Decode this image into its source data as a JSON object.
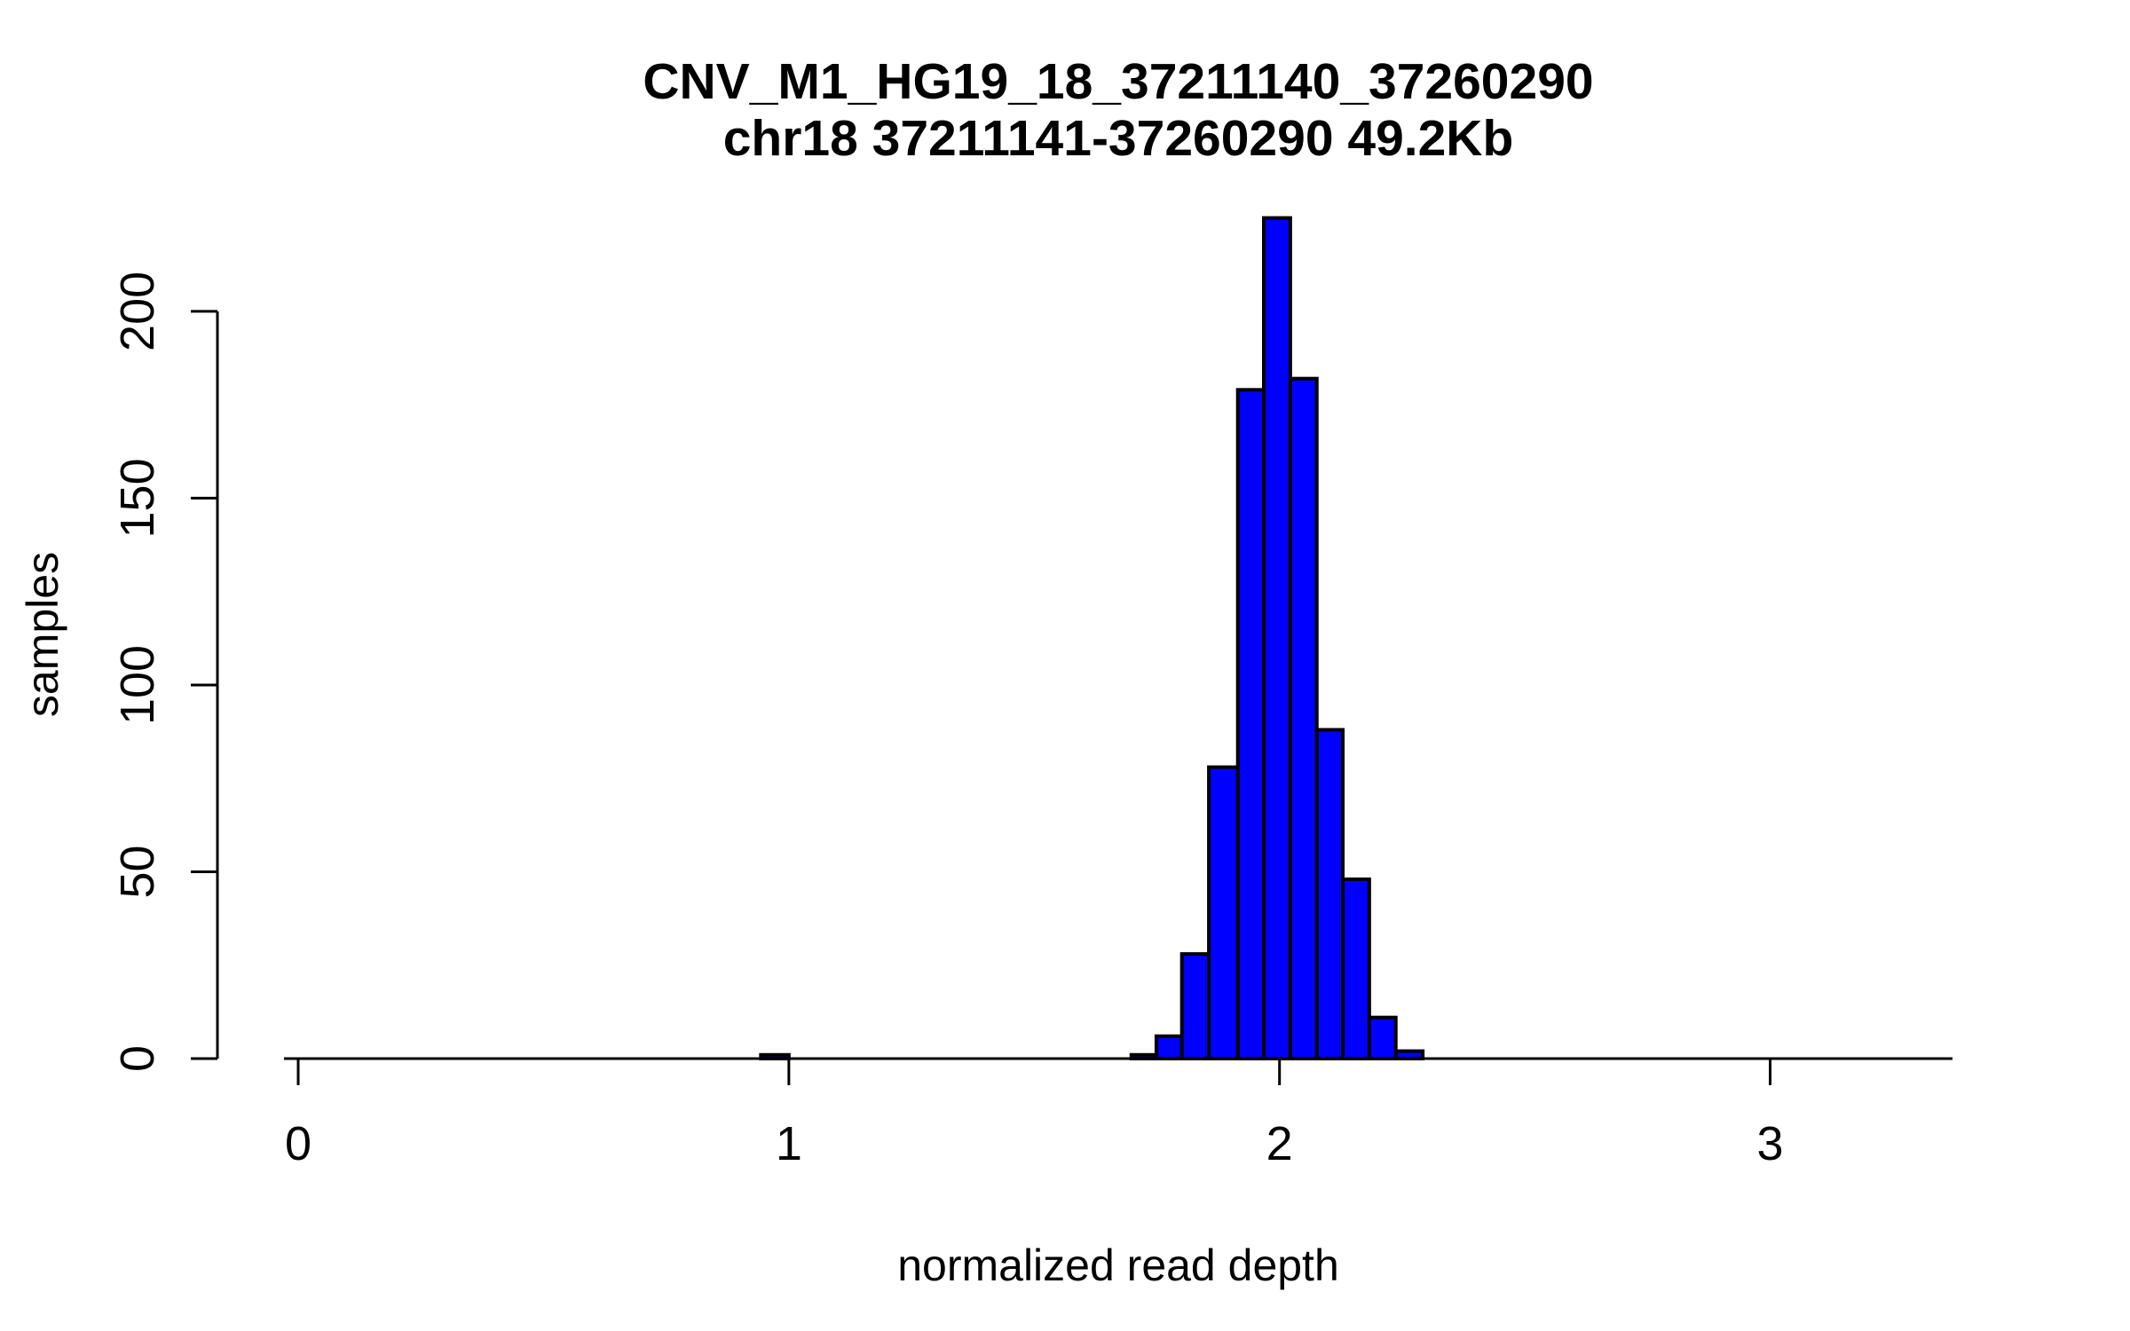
{
  "figure": {
    "title_line1": "CNV_M1_HG19_18_37211140_37260290",
    "title_line2": "chr18 37211141-37260290 49.2Kb"
  },
  "axes": {
    "x_label": "normalized read depth",
    "y_label": "samples",
    "x_tick_labels": [
      "0",
      "1",
      "2",
      "3"
    ],
    "x_tick_values": [
      0,
      1,
      2,
      3
    ],
    "y_tick_labels": [
      "0",
      "50",
      "100",
      "150",
      "200"
    ],
    "y_tick_values": [
      0,
      50,
      100,
      150,
      200
    ]
  },
  "colors": {
    "background": "#FFFFFF",
    "bar_fill": "#0000FF",
    "bar_edge": "#000000",
    "axis": "#000000",
    "text": "#000000"
  },
  "chart_data": {
    "type": "bar",
    "subtype": "histogram",
    "title": "CNV_M1_HG19_18_37211140_37260290",
    "subtitle": "chr18 37211141-37260290 49.2Kb",
    "xlabel": "normalized read depth",
    "ylabel": "samples",
    "xlim": [
      -0.03,
      3.37
    ],
    "ylim": [
      0,
      230
    ],
    "grid": false,
    "legend_position": "none",
    "bins": [
      {
        "x0": 0.943,
        "x1": 1.0,
        "count": 1
      },
      {
        "x0": 1.698,
        "x1": 1.749,
        "count": 1
      },
      {
        "x0": 1.749,
        "x1": 1.801,
        "count": 6
      },
      {
        "x0": 1.801,
        "x1": 1.856,
        "count": 28
      },
      {
        "x0": 1.856,
        "x1": 1.915,
        "count": 78
      },
      {
        "x0": 1.915,
        "x1": 1.968,
        "count": 179
      },
      {
        "x0": 1.968,
        "x1": 2.022,
        "count": 225
      },
      {
        "x0": 2.022,
        "x1": 2.076,
        "count": 182
      },
      {
        "x0": 2.076,
        "x1": 2.129,
        "count": 88
      },
      {
        "x0": 2.129,
        "x1": 2.183,
        "count": 48
      },
      {
        "x0": 2.183,
        "x1": 2.237,
        "count": 11
      },
      {
        "x0": 2.237,
        "x1": 2.292,
        "count": 2
      }
    ]
  }
}
